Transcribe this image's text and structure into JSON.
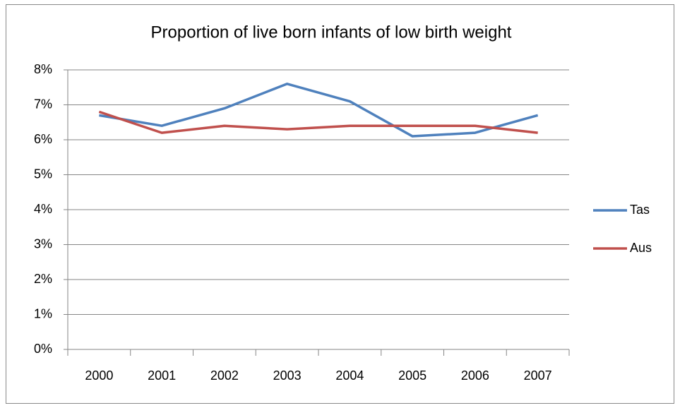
{
  "chart_data": {
    "type": "line",
    "title": "Proportion of live born infants of low birth weight",
    "categories": [
      "2000",
      "2001",
      "2002",
      "2003",
      "2004",
      "2005",
      "2006",
      "2007"
    ],
    "series": [
      {
        "name": "Tas",
        "color": "#4f81bd",
        "values": [
          6.7,
          6.4,
          6.9,
          7.6,
          7.1,
          6.1,
          6.2,
          6.7
        ]
      },
      {
        "name": "Aus",
        "color": "#c0504d",
        "values": [
          6.8,
          6.2,
          6.4,
          6.3,
          6.4,
          6.4,
          6.4,
          6.2
        ]
      }
    ],
    "ylim": [
      0,
      8
    ],
    "yticks": [
      {
        "value": 0,
        "label": "0%"
      },
      {
        "value": 1,
        "label": "1%"
      },
      {
        "value": 2,
        "label": "2%"
      },
      {
        "value": 3,
        "label": "3%"
      },
      {
        "value": 4,
        "label": "4%"
      },
      {
        "value": 5,
        "label": "5%"
      },
      {
        "value": 6,
        "label": "6%"
      },
      {
        "value": 7,
        "label": "7%"
      },
      {
        "value": 8,
        "label": "8%"
      }
    ],
    "grid": true,
    "legend": "right"
  }
}
